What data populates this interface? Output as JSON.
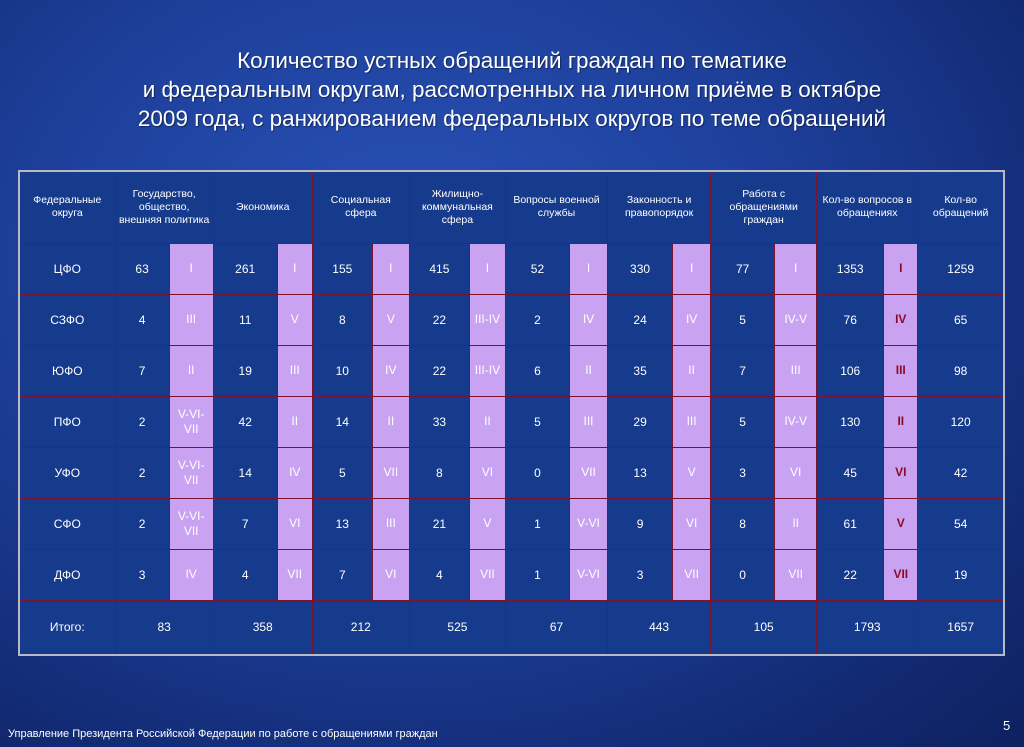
{
  "title": {
    "line1": "Количество устных обращений граждан по тематике",
    "line2": "и федеральным округам, рассмотренных на личном приёме в октябре",
    "line3": "2009 года, с ранжированием федеральных округов по теме обращений"
  },
  "table": {
    "headers": [
      "Федеральные округа",
      "Государство, общество, внешняя политика",
      "Экономика",
      "Социальная сфера",
      "Жилищно-коммунальная сфера",
      "Вопросы военной службы",
      "Законность и правопорядок",
      "Работа с обращениями граждан",
      "Кол-во вопросов в обращениях",
      "Кол-во обращений"
    ],
    "rows": [
      {
        "name": "ЦФО",
        "cells": [
          "63",
          "I",
          "261",
          "I",
          "155",
          "I",
          "415",
          "I",
          "52",
          "I",
          "330",
          "I",
          "77",
          "I",
          "1353",
          "I",
          "1259"
        ]
      },
      {
        "name": "СЗФО",
        "cells": [
          "4",
          "III",
          "11",
          "V",
          "8",
          "V",
          "22",
          "III-IV",
          "2",
          "IV",
          "24",
          "IV",
          "5",
          "IV-V",
          "76",
          "IV",
          "65"
        ]
      },
      {
        "name": "ЮФО",
        "cells": [
          "7",
          "II",
          "19",
          "III",
          "10",
          "IV",
          "22",
          "III-IV",
          "6",
          "II",
          "35",
          "II",
          "7",
          "III",
          "106",
          "III",
          "98"
        ]
      },
      {
        "name": "ПФО",
        "cells": [
          "2",
          "V-VI-VII",
          "42",
          "II",
          "14",
          "II",
          "33",
          "II",
          "5",
          "III",
          "29",
          "III",
          "5",
          "IV-V",
          "130",
          "II",
          "120"
        ]
      },
      {
        "name": "УФО",
        "cells": [
          "2",
          "V-VI-VII",
          "14",
          "IV",
          "5",
          "VII",
          "8",
          "VI",
          "0",
          "VII",
          "13",
          "V",
          "3",
          "VI",
          "45",
          "VI",
          "42"
        ]
      },
      {
        "name": "СФО",
        "cells": [
          "2",
          "V-VI-VII",
          "7",
          "VI",
          "13",
          "III",
          "21",
          "V",
          "1",
          "V-VI",
          "9",
          "VI",
          "8",
          "II",
          "61",
          "V",
          "54"
        ]
      },
      {
        "name": "ДФО",
        "cells": [
          "3",
          "IV",
          "4",
          "VII",
          "7",
          "VI",
          "4",
          "VII",
          "1",
          "V-VI",
          "3",
          "VII",
          "0",
          "VII",
          "22",
          "VII",
          "19"
        ]
      }
    ],
    "total": {
      "name": "Итого:",
      "cells": [
        "83",
        "358",
        "212",
        "525",
        "67",
        "443",
        "105",
        "1793",
        "1657"
      ]
    }
  },
  "footer": "Управление Президента Российской Федерации по работе с обращениями граждан",
  "page_number": "5",
  "colors": {
    "background": "#1d3f9a",
    "rank_cell": "#c9a3f2",
    "rank_bold_text": "#8a0a28",
    "grid_line": "#7a1232"
  }
}
